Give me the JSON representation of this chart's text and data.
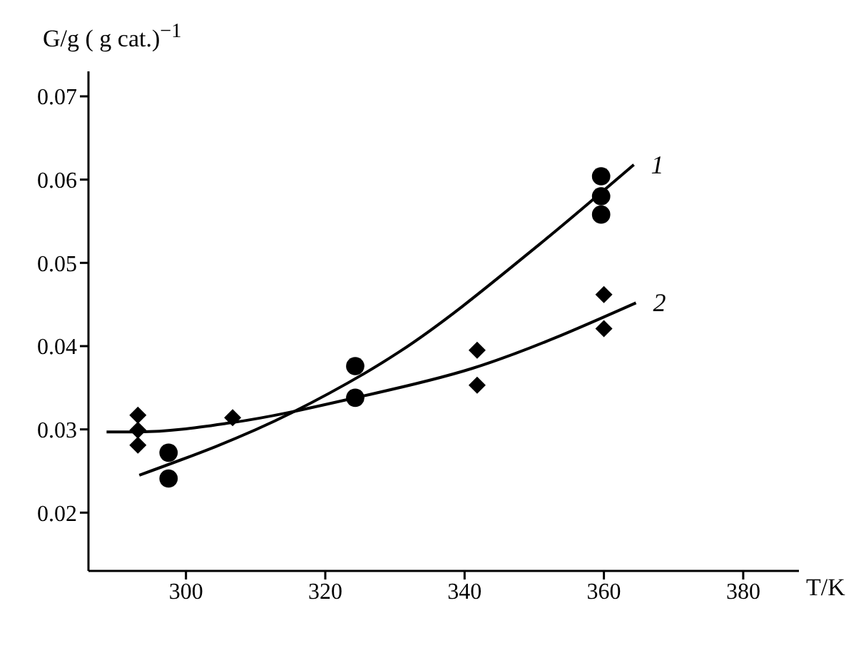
{
  "chart_data": {
    "type": "scatter",
    "ylabel": "G/g ( g cat.)$^{−1}$",
    "xlabel": "T/K",
    "xlim": [
      286,
      388
    ],
    "xticks": [
      300,
      320,
      340,
      360,
      380
    ],
    "ylim": [
      0.013,
      0.073
    ],
    "yticks": [
      0.02,
      0.03,
      0.04,
      0.05,
      0.06,
      0.07
    ],
    "series": [
      {
        "marker": "circle",
        "color": "#000000",
        "x": [
          297.5,
          297.5,
          324.3,
          324.3,
          359.6,
          359.6,
          359.6
        ],
        "values": [
          0.0272,
          0.0241,
          0.0376,
          0.0338,
          0.0604,
          0.058,
          0.0558
        ]
      },
      {
        "marker": "diamond",
        "color": "#000000",
        "x": [
          293.1,
          293.1,
          293.1,
          306.7,
          341.8,
          341.8,
          360,
          360
        ],
        "values": [
          0.0317,
          0.0299,
          0.0281,
          0.0314,
          0.0395,
          0.0353,
          0.0462,
          0.0421
        ]
      },
      {
        "type": "line",
        "name": "1",
        "marker": "none",
        "color": "#000000",
        "x": [
          293.3,
          315.2,
          330.6,
          351,
          364.3
        ],
        "values": [
          0.0245,
          0.032,
          0.0393,
          0.0524,
          0.0618
        ]
      },
      {
        "type": "line",
        "name": "2",
        "marker": "none",
        "color": "#000000",
        "x": [
          288.6,
          293.3,
          306.5,
          324.3,
          341,
          364.6
        ],
        "values": [
          0.0297,
          0.0297,
          0.0308,
          0.0338,
          0.0373,
          0.0452
        ]
      }
    ]
  }
}
